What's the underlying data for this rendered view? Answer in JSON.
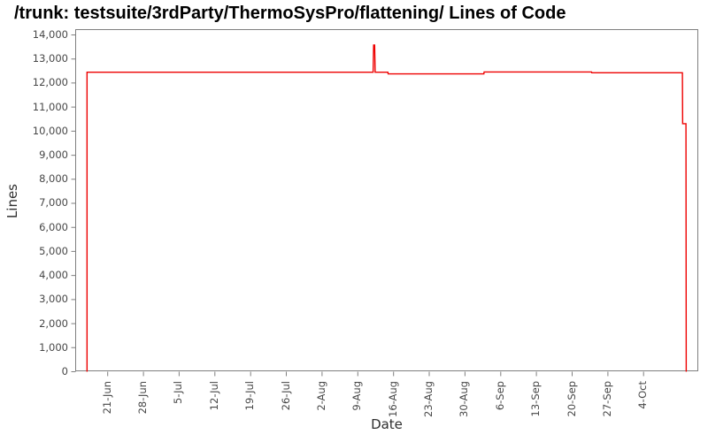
{
  "page": {
    "title": "/trunk: testsuite/3rdParty/ThermoSysPro/flattening/ Lines of Code"
  },
  "chart_data": {
    "type": "line",
    "title": "/trunk: testsuite/3rdParty/ThermoSysPro/flattening/ Lines of Code",
    "xlabel": "Date",
    "ylabel": "Lines",
    "legend": "none",
    "grid": false,
    "line_color": "#ee0000",
    "axis_color": "#7f7f7f",
    "tick_label_color": "#474747",
    "ylim": [
      0,
      14200
    ],
    "y_ticks": [
      0,
      1000,
      2000,
      3000,
      4000,
      5000,
      6000,
      7000,
      8000,
      9000,
      10000,
      11000,
      12000,
      13000,
      14000
    ],
    "y_tick_labels": [
      "0",
      "1,000",
      "2,000",
      "3,000",
      "4,000",
      "5,000",
      "6,000",
      "7,000",
      "8,000",
      "9,000",
      "10,000",
      "11,000",
      "12,000",
      "13,000",
      "14,000"
    ],
    "x_tick_labels": [
      "21-Jun",
      "28-Jun",
      "5-Jul",
      "12-Jul",
      "19-Jul",
      "26-Jul",
      "2-Aug",
      "9-Aug",
      "16-Aug",
      "23-Aug",
      "30-Aug",
      "6-Sep",
      "13-Sep",
      "20-Sep",
      "27-Sep",
      "4-Oct"
    ],
    "x_tick_days": [
      0,
      7,
      14,
      21,
      28,
      35,
      42,
      49,
      56,
      63,
      70,
      77,
      84,
      91,
      98,
      105
    ],
    "series": [
      {
        "name": "Lines of Code",
        "color": "#ee0000",
        "points": [
          {
            "date": "17-Jun",
            "value": 0
          },
          {
            "date": "18-Jun",
            "value": 12450
          },
          {
            "date": "12-Aug",
            "value": 13580
          },
          {
            "date": "13-Aug",
            "value": 12450
          },
          {
            "date": "15-Aug",
            "value": 12380
          },
          {
            "date": "3-Sep",
            "value": 12460
          },
          {
            "date": "24-Sep",
            "value": 12425
          },
          {
            "date": "11-Oct",
            "value": 10310
          },
          {
            "date": "12-Oct",
            "value": 0
          }
        ],
        "vertices_day_value": [
          [
            -4.05,
            0
          ],
          [
            -4.05,
            12450
          ],
          [
            52.0,
            12450
          ],
          [
            52.1,
            13580
          ],
          [
            52.3,
            13580
          ],
          [
            52.4,
            12450
          ],
          [
            54.9,
            12450
          ],
          [
            54.95,
            12380
          ],
          [
            73.7,
            12380
          ],
          [
            73.75,
            12460
          ],
          [
            94.8,
            12460
          ],
          [
            94.85,
            12425
          ],
          [
            112.6,
            12425
          ],
          [
            112.65,
            10310
          ],
          [
            113.3,
            10310
          ],
          [
            113.35,
            0
          ]
        ]
      }
    ]
  }
}
